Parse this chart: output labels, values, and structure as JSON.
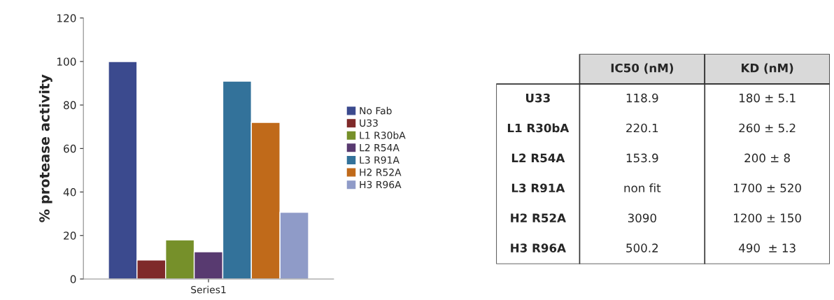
{
  "chart_data": [
    {
      "type": "bar",
      "ylabel": "% protease activity",
      "categories": [
        "Series1"
      ],
      "ylim": [
        0,
        120
      ],
      "yticks": [
        0,
        20,
        40,
        60,
        80,
        100,
        120
      ],
      "legend": "right",
      "grid": false,
      "series": [
        {
          "name": "No Fab",
          "color": "#3b4a8e",
          "values": [
            100
          ]
        },
        {
          "name": "U33",
          "color": "#7f2a2a",
          "values": [
            8.7
          ]
        },
        {
          "name": "L1 R30bA",
          "color": "#76902a",
          "values": [
            18
          ]
        },
        {
          "name": "L2 R54A",
          "color": "#583a70",
          "values": [
            12.5
          ]
        },
        {
          "name": "L3 R91A",
          "color": "#33729a",
          "values": [
            91
          ]
        },
        {
          "name": "H2 R52A",
          "color": "#c06a1a",
          "values": [
            72
          ]
        },
        {
          "name": "H3 R96A",
          "color": "#8f9bc8",
          "values": [
            30.7
          ]
        }
      ]
    },
    {
      "type": "other",
      "categories": [
        "IC50 (nM)",
        "KD (nM)"
      ],
      "y_categories": [
        "U33",
        "L1 R30bA",
        "L2 R54A",
        "L3 R91A",
        "H2 R52A",
        "H3 R96A"
      ],
      "cell_labels": [
        [
          "118.9",
          "180 ± 5.1"
        ],
        [
          "220.1",
          "260 ± 5.2"
        ],
        [
          "153.9",
          "200 ± 8"
        ],
        [
          "non fit",
          "1700 ± 520"
        ],
        [
          "3090",
          "1200 ± 150"
        ],
        [
          "500.2",
          "490  ± 13"
        ]
      ]
    }
  ]
}
